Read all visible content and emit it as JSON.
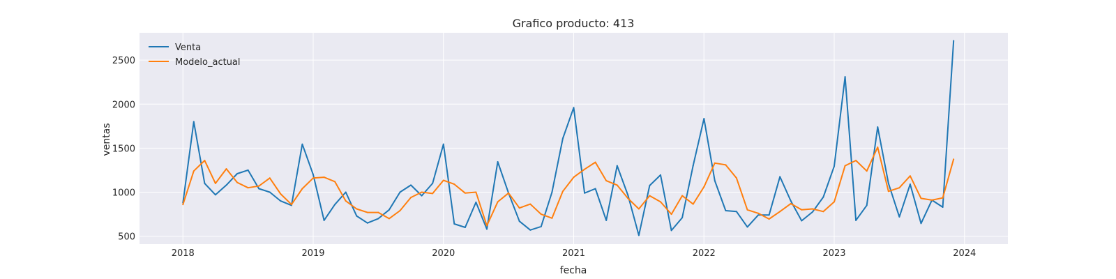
{
  "chart_data": {
    "type": "line",
    "title": "Grafico producto: 413",
    "xlabel": "fecha",
    "ylabel": "ventas",
    "x_start": "2018-01",
    "x_ticks": [
      "2018",
      "2019",
      "2020",
      "2021",
      "2022",
      "2023",
      "2024"
    ],
    "y_ticks": [
      500,
      1000,
      1500,
      2000,
      2500
    ],
    "xlim": [
      "2017-09",
      "2024-05"
    ],
    "ylim": [
      410,
      2810
    ],
    "grid": true,
    "legend_position": "top-left",
    "series": [
      {
        "name": "Venta",
        "color": "#1f77b4",
        "values": [
          880,
          1800,
          1100,
          970,
          1080,
          1210,
          1250,
          1040,
          1000,
          900,
          850,
          1545,
          1200,
          680,
          860,
          1000,
          730,
          650,
          700,
          800,
          1000,
          1080,
          960,
          1100,
          1545,
          640,
          600,
          885,
          580,
          1345,
          990,
          670,
          570,
          610,
          1000,
          1610,
          1960,
          990,
          1040,
          680,
          1300,
          965,
          510,
          1075,
          1195,
          565,
          710,
          1300,
          1835,
          1130,
          790,
          780,
          605,
          740,
          740,
          1175,
          900,
          675,
          775,
          945,
          1295,
          2310,
          680,
          850,
          1740,
          1100,
          720,
          1090,
          645,
          910,
          830,
          2720
        ]
      },
      {
        "name": "Modelo_actual",
        "color": "#ff7f0e",
        "values": [
          860,
          1240,
          1360,
          1100,
          1265,
          1110,
          1050,
          1070,
          1160,
          980,
          860,
          1040,
          1160,
          1170,
          1120,
          900,
          810,
          770,
          770,
          700,
          790,
          940,
          1000,
          985,
          1135,
          1090,
          990,
          1000,
          620,
          890,
          990,
          820,
          865,
          750,
          705,
          1010,
          1170,
          1260,
          1340,
          1130,
          1080,
          930,
          810,
          960,
          890,
          750,
          960,
          865,
          1060,
          1330,
          1310,
          1160,
          800,
          760,
          695,
          780,
          870,
          800,
          810,
          780,
          890,
          1300,
          1360,
          1240,
          1510,
          1010,
          1050,
          1185,
          930,
          910,
          935,
          1375
        ]
      }
    ]
  }
}
